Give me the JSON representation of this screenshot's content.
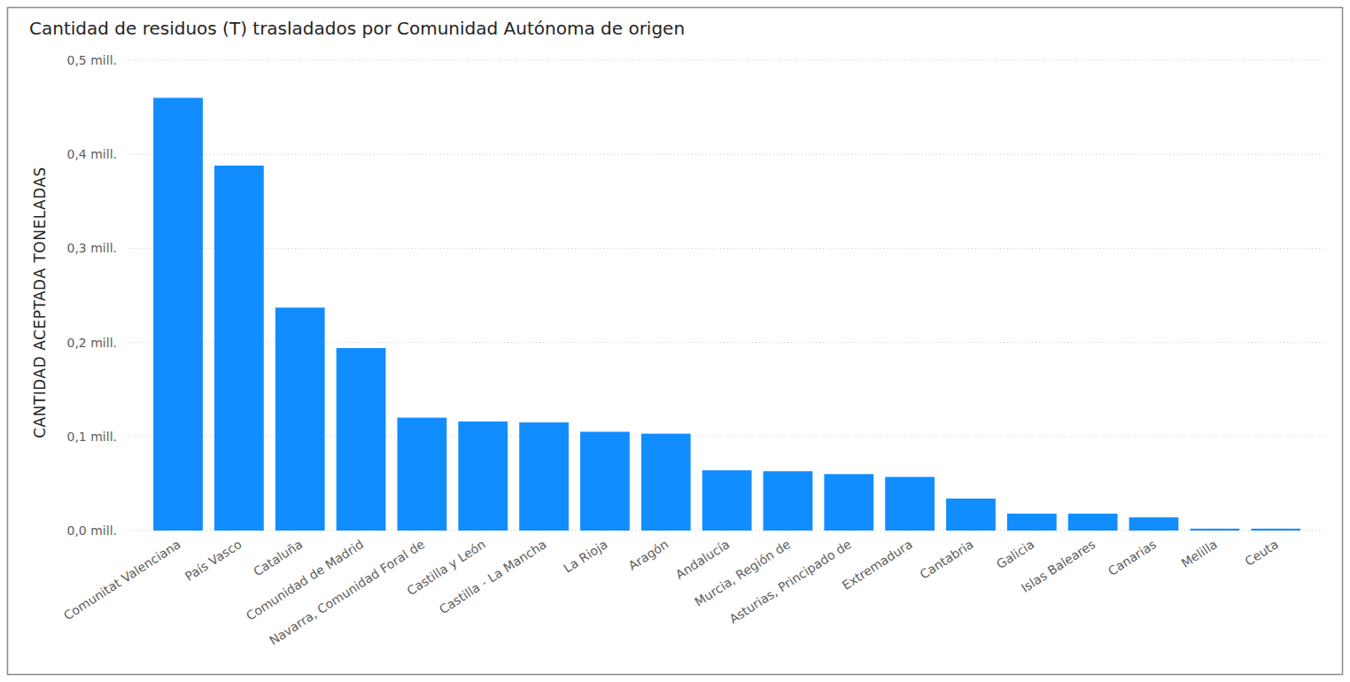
{
  "chart_data": {
    "type": "bar",
    "title": "Cantidad de residuos (T) trasladados por Comunidad Autónoma de origen",
    "y_label": "CANTIDAD ACEPTADA TONELADAS",
    "categories": [
      "Comunitat Valenciana",
      "País Vasco",
      "Cataluña",
      "Comunidad de Madrid",
      "Navarra, Comunidad Foral de",
      "Castilla y León",
      "Castilla - La Mancha",
      "La Rioja",
      "Aragón",
      "Andalucía",
      "Murcia, Región de",
      "Asturias, Principado de",
      "Extremadura",
      "Cantabria",
      "Galicia",
      "Islas Baleares",
      "Canarias",
      "Melilla",
      "Ceuta"
    ],
    "values": [
      460000,
      388000,
      237000,
      194000,
      120000,
      116000,
      115000,
      105000,
      103000,
      64000,
      63000,
      60000,
      57000,
      34000,
      18000,
      18000,
      14000,
      2000,
      2000
    ],
    "color": "#118dff",
    "ylim": [
      0,
      500000
    ],
    "yticks": [
      {
        "value": 0,
        "label": "0,0 mill."
      },
      {
        "value": 100000,
        "label": "0,1 mill."
      },
      {
        "value": 200000,
        "label": "0,2 mill."
      },
      {
        "value": 300000,
        "label": "0,3 mill."
      },
      {
        "value": 400000,
        "label": "0,4 mill."
      },
      {
        "value": 500000,
        "label": "0,5 mill."
      }
    ],
    "grid": true
  }
}
